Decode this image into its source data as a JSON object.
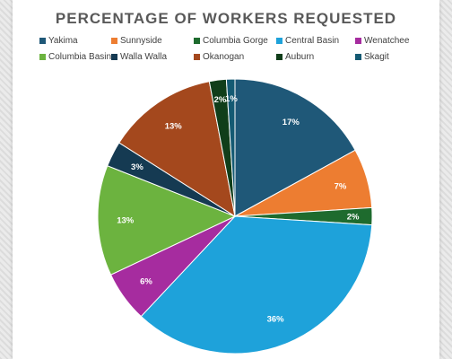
{
  "chart_data": {
    "type": "pie",
    "title": "PERCENTAGE OF WORKERS REQUESTED",
    "categories": [
      "Yakima",
      "Sunnyside",
      "Columbia Gorge",
      "Central Basin",
      "Wenatchee",
      "Columbia Basin",
      "Walla Walla",
      "Okanogan",
      "Auburn",
      "Skagit"
    ],
    "values": [
      17,
      7,
      2,
      36,
      6,
      13,
      3,
      13,
      2,
      1
    ],
    "labels": [
      "17%",
      "7%",
      "2%",
      "36%",
      "6%",
      "13%",
      "3%",
      "13%",
      "2%",
      "1%"
    ],
    "colors": [
      "#1f5878",
      "#ed7d31",
      "#1e6b2e",
      "#1ea2da",
      "#a62c9f",
      "#6cb33f",
      "#153a52",
      "#a4481d",
      "#103e1a",
      "#145a73"
    ],
    "legend_position": "top",
    "start_angle_deg": 0,
    "direction": "clockwise"
  }
}
